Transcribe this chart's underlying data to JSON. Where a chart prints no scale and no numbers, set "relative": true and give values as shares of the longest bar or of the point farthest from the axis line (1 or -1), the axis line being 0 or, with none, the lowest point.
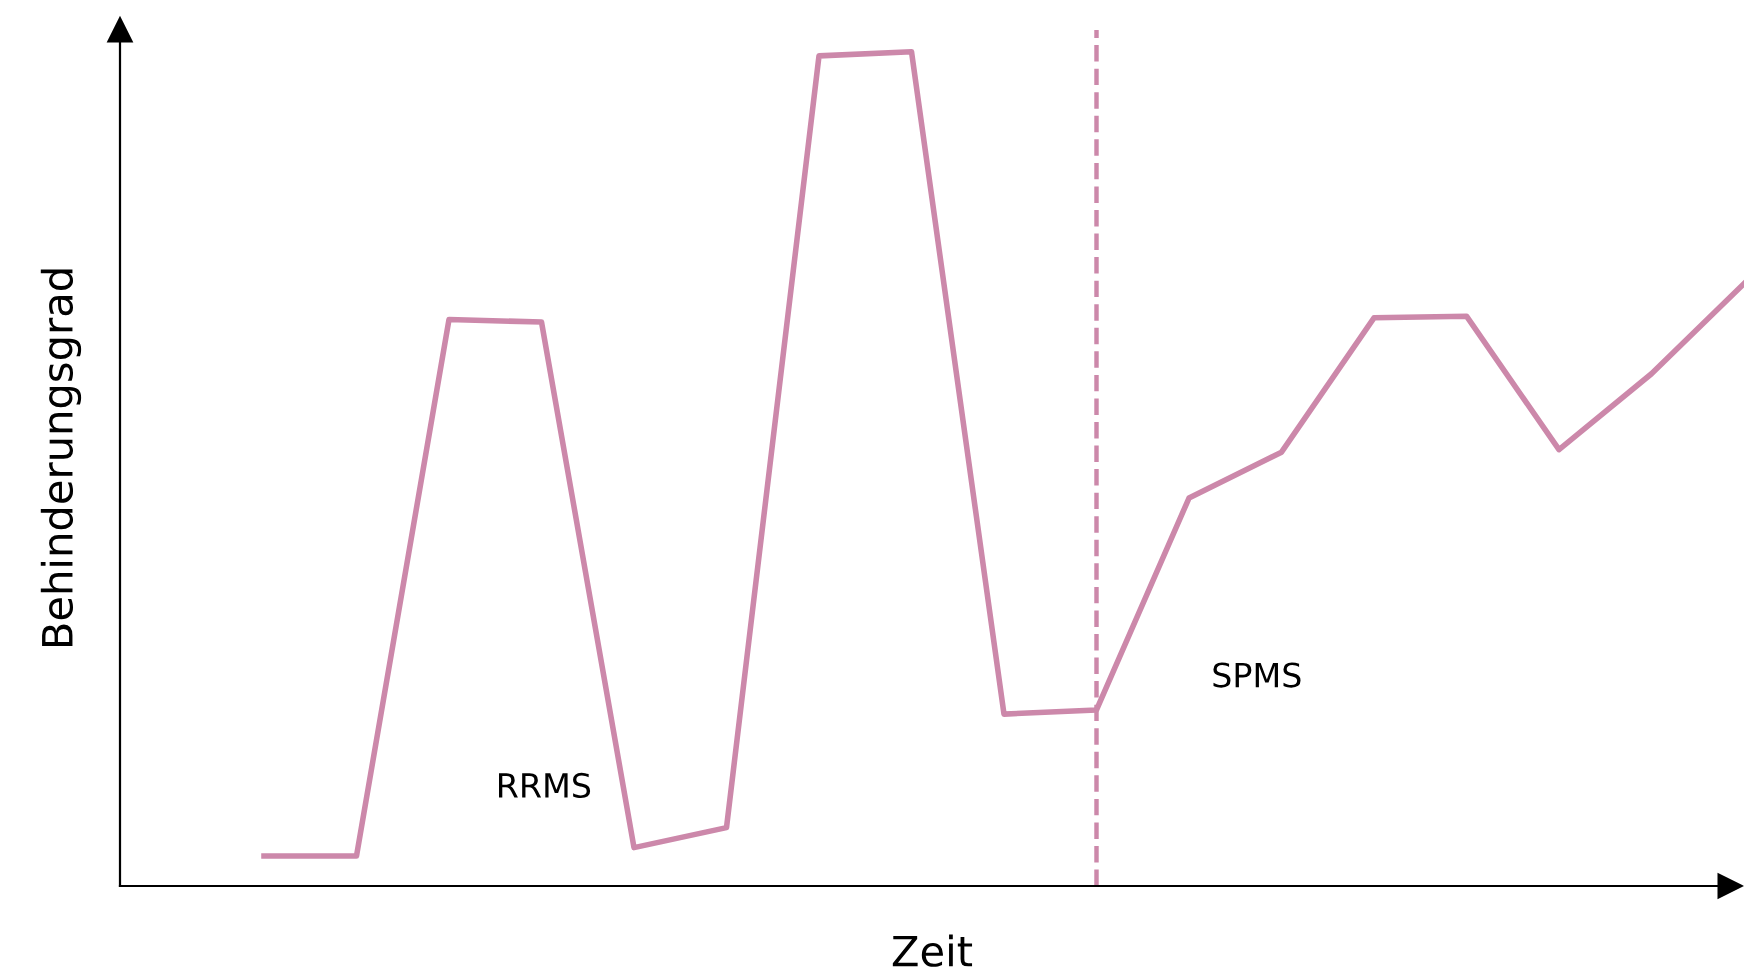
{
  "chart_data": {
    "type": "line",
    "relative": true,
    "xlabel": "Zeit",
    "ylabel": "Behinderungsgrad",
    "categories": [
      null,
      null,
      null,
      null,
      null,
      null,
      null,
      null,
      null,
      null,
      null,
      null,
      null,
      null,
      null,
      null,
      null
    ],
    "series": [
      {
        "color": "#cc88aa",
        "values": [
          0.036,
          0.036,
          0.679,
          0.676,
          0.046,
          0.07,
          0.995,
          1.0,
          0.206,
          0.211,
          0.465,
          0.52,
          0.681,
          0.683,
          0.523,
          0.614,
          0.722
        ]
      }
    ],
    "annotations": [
      "RRMS",
      "SPMS"
    ]
  }
}
